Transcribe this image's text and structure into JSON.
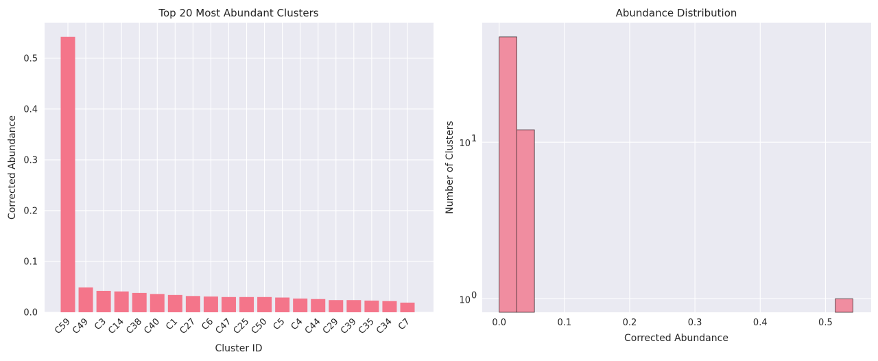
{
  "chart_data": [
    {
      "type": "bar",
      "title": "Top 20 Most Abundant Clusters",
      "xlabel": "Cluster ID",
      "ylabel": "Corrected Abundance",
      "ylim": [
        0,
        0.57
      ],
      "yticks": [
        "0.0",
        "0.1",
        "0.2",
        "0.3",
        "0.4",
        "0.5"
      ],
      "ytick_values": [
        0,
        0.1,
        0.2,
        0.3,
        0.4,
        0.5
      ],
      "grid": true,
      "color": "#f4758a",
      "categories": [
        "C59",
        "C49",
        "C3",
        "C14",
        "C38",
        "C40",
        "C1",
        "C27",
        "C6",
        "C47",
        "C25",
        "C50",
        "C5",
        "C4",
        "C44",
        "C29",
        "C39",
        "C35",
        "C34",
        "C7"
      ],
      "values": [
        0.542,
        0.049,
        0.042,
        0.041,
        0.038,
        0.036,
        0.034,
        0.032,
        0.031,
        0.03,
        0.03,
        0.03,
        0.029,
        0.027,
        0.026,
        0.024,
        0.024,
        0.023,
        0.022,
        0.019
      ]
    },
    {
      "type": "histogram",
      "title": "Abundance Distribution",
      "xlabel": "Corrected Abundance",
      "ylabel": "Number of Clusters",
      "yscale": "log",
      "xlim": [
        -0.026,
        0.57
      ],
      "ylim": [
        0.82,
        58
      ],
      "xticks": [
        "0.0",
        "0.1",
        "0.2",
        "0.3",
        "0.4",
        "0.5"
      ],
      "xtick_values": [
        0,
        0.1,
        0.2,
        0.3,
        0.4,
        0.5
      ],
      "yticks": [
        {
          "base": "10",
          "exp": "0",
          "value": 1
        },
        {
          "base": "10",
          "exp": "1",
          "value": 10
        }
      ],
      "grid": true,
      "color": "#f08da0",
      "bins": [
        {
          "x0": 0.0,
          "x1": 0.027,
          "count": 47
        },
        {
          "x0": 0.027,
          "x1": 0.054,
          "count": 12
        },
        {
          "x0": 0.515,
          "x1": 0.542,
          "count": 1
        }
      ]
    }
  ]
}
